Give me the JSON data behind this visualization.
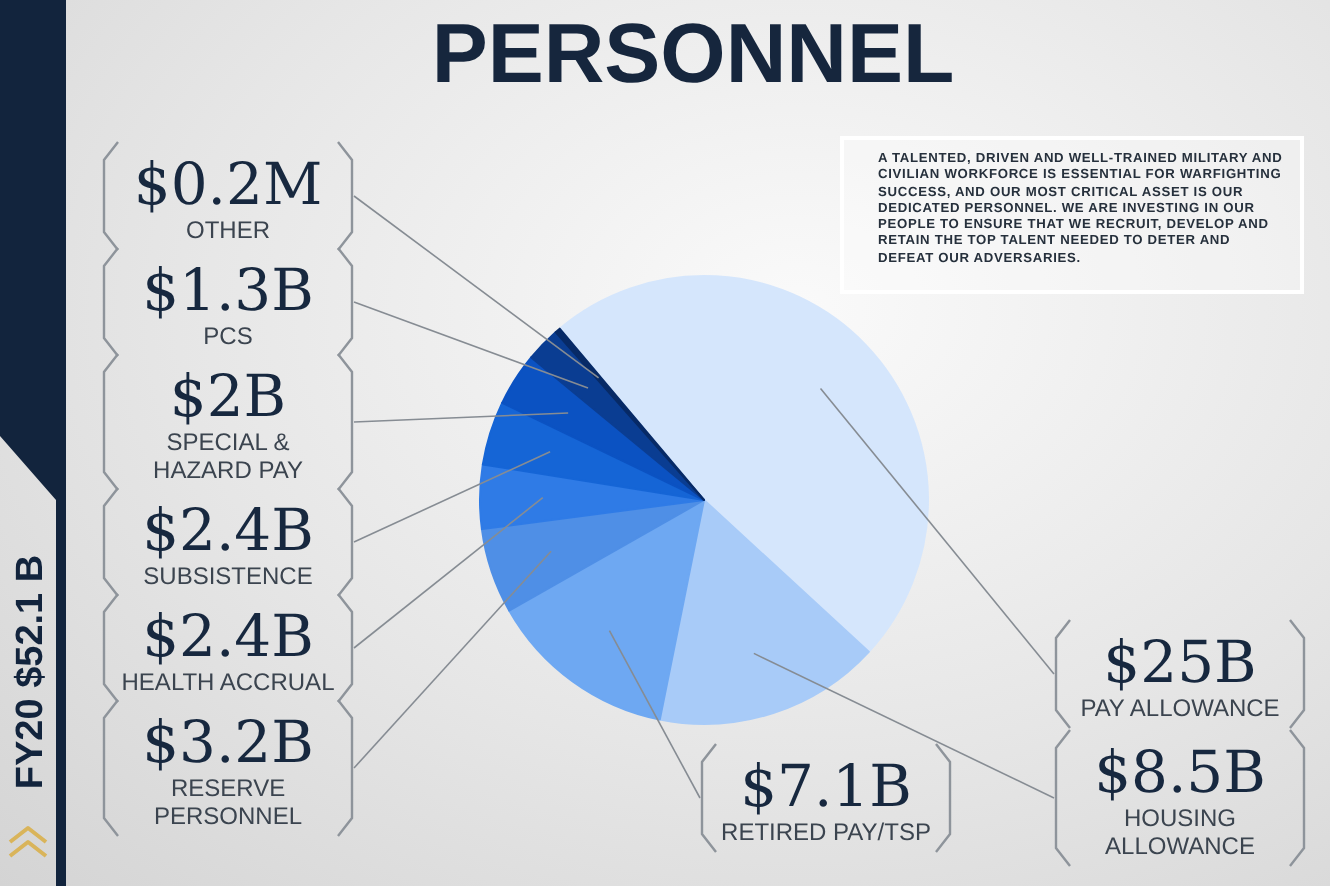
{
  "chart_data": {
    "type": "pie",
    "title": "PERSONNEL",
    "subtitle": "FY20 $52.1 B",
    "categories": [
      "PAY ALLOWANCE",
      "HOUSING ALLOWANCE",
      "RETIRED PAY/TSP",
      "RESERVE PERSONNEL",
      "HEALTH ACCRUAL",
      "SUBSISTENCE",
      "SPECIAL & HAZARD PAY",
      "PCS",
      "OTHER"
    ],
    "values": [
      25,
      8.5,
      7.1,
      3.2,
      2.4,
      2.4,
      2,
      1.3,
      0.2
    ],
    "value_labels": [
      "$25B",
      "$8.5B",
      "$7.1B",
      "$3.2B",
      "$2.4B",
      "$2.4B",
      "$2B",
      "$1.3B",
      "$0.2M"
    ],
    "colors": [
      "#d5e6fc",
      "#a8cbf8",
      "#6ea8f2",
      "#4f8fe6",
      "#2f7be6",
      "#1565d6",
      "#0b52c2",
      "#0a3d92",
      "#072a66"
    ],
    "annotations": [
      "A TALENTED, DRIVEN AND WELL-TRAINED MILITARY AND CIVILIAN WORKFORCE IS ESSENTIAL FOR WARFIGHTING SUCCESS, AND OUR MOST CRITICAL ASSET IS OUR DEDICATED PERSONNEL. WE ARE INVESTING IN OUR PEOPLE TO ENSURE THAT WE RECRUIT, DEVELOP AND RETAIN THE TOP TALENT NEEDED TO DETER AND DEFEAT OUR ADVERSARIES."
    ]
  }
}
